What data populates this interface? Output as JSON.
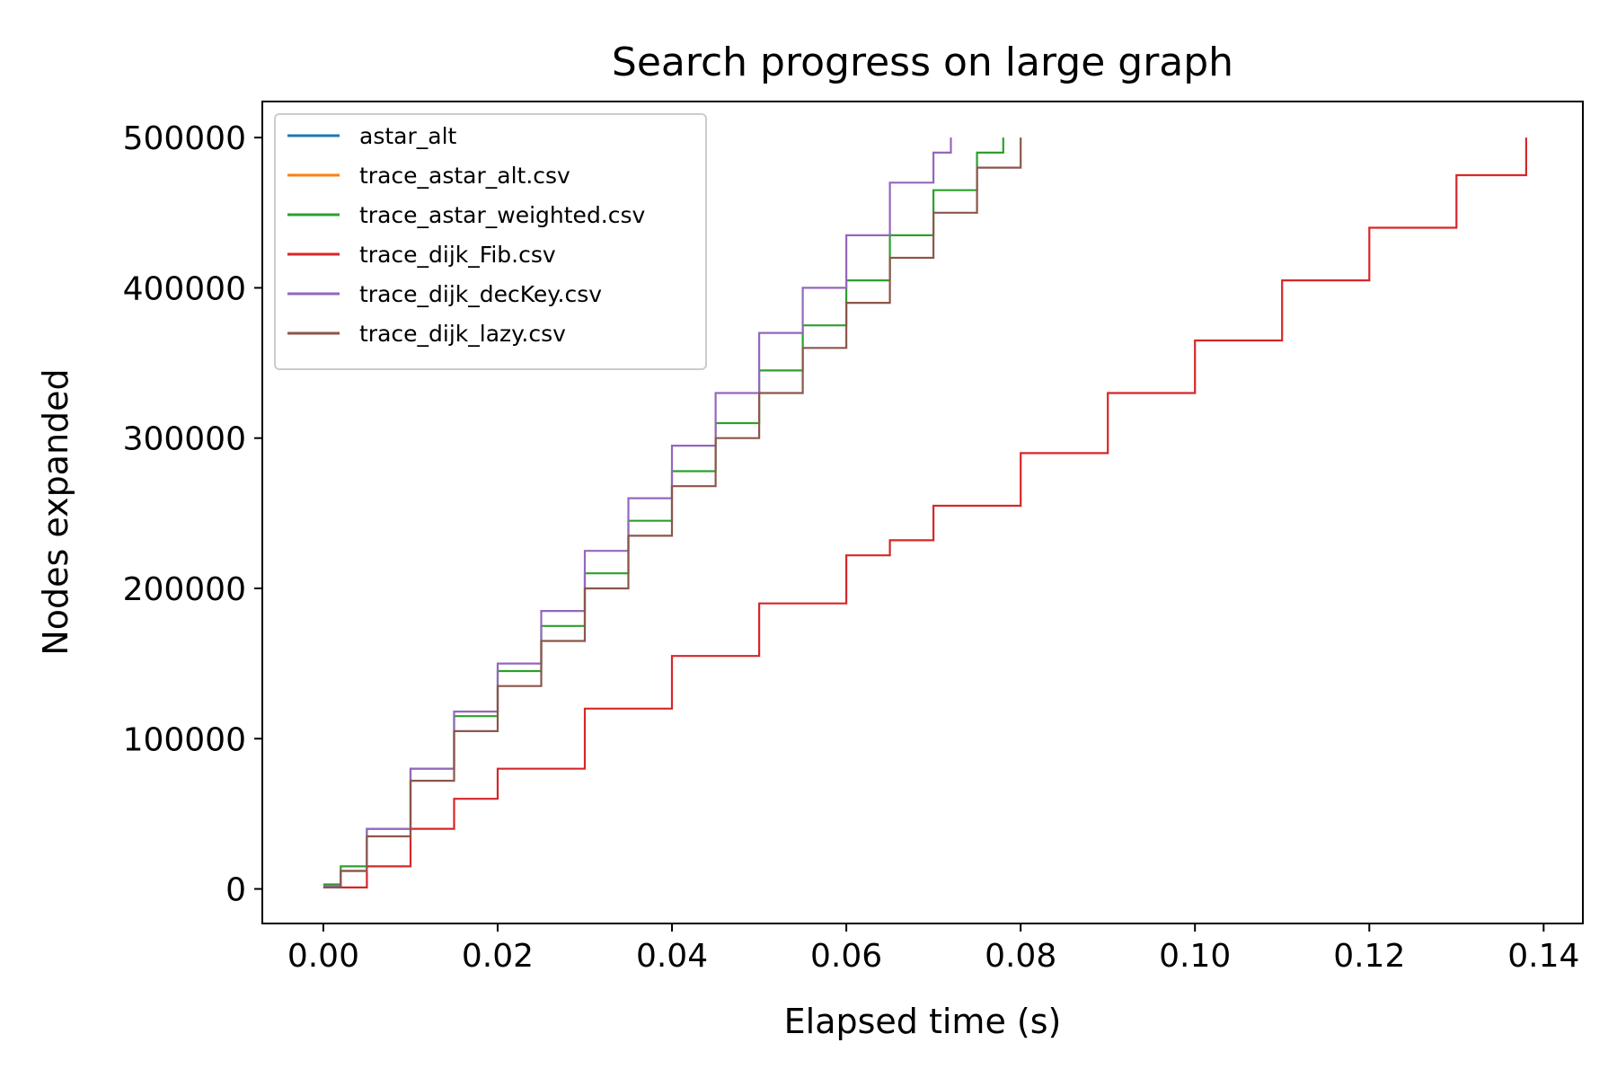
{
  "chart_data": {
    "type": "line",
    "title": "Search progress on large graph",
    "xlabel": "Elapsed time (s)",
    "ylabel": "Nodes expanded",
    "xlim": [
      -0.007,
      0.1445
    ],
    "ylim": [
      -23000,
      524000
    ],
    "x_ticks": [
      0.0,
      0.02,
      0.04,
      0.06,
      0.08,
      0.1,
      0.12,
      0.14
    ],
    "x_tick_labels": [
      "0.00",
      "0.02",
      "0.04",
      "0.06",
      "0.08",
      "0.10",
      "0.12",
      "0.14"
    ],
    "y_ticks": [
      0,
      100000,
      200000,
      300000,
      400000,
      500000
    ],
    "y_tick_labels": [
      "0",
      "100000",
      "200000",
      "300000",
      "400000",
      "500000"
    ],
    "grid": false,
    "legend_position": "top-left",
    "line_style": "steps",
    "series": [
      {
        "name": "astar_alt",
        "color": "#1f77b4",
        "x": [],
        "y": []
      },
      {
        "name": "trace_astar_alt.csv",
        "color": "#ff7f0e",
        "x": [],
        "y": []
      },
      {
        "name": "trace_astar_weighted.csv",
        "color": "#2ca02c",
        "x": [
          0.0,
          0.002,
          0.005,
          0.01,
          0.015,
          0.02,
          0.025,
          0.03,
          0.035,
          0.04,
          0.045,
          0.05,
          0.055,
          0.06,
          0.065,
          0.07,
          0.075,
          0.078
        ],
        "y": [
          3000,
          15000,
          40000,
          80000,
          115000,
          145000,
          175000,
          210000,
          245000,
          278000,
          310000,
          345000,
          375000,
          405000,
          435000,
          465000,
          490000,
          500000
        ]
      },
      {
        "name": "trace_dijk_Fib.csv",
        "color": "#d62728",
        "x": [
          0.0,
          0.005,
          0.01,
          0.015,
          0.02,
          0.03,
          0.04,
          0.05,
          0.06,
          0.065,
          0.07,
          0.08,
          0.09,
          0.1,
          0.11,
          0.12,
          0.13,
          0.138
        ],
        "y": [
          1000,
          15000,
          40000,
          60000,
          80000,
          120000,
          155000,
          190000,
          222000,
          232000,
          255000,
          290000,
          330000,
          365000,
          405000,
          440000,
          475000,
          500000
        ]
      },
      {
        "name": "trace_dijk_decKey.csv",
        "color": "#9467bd",
        "x": [
          0.0,
          0.002,
          0.005,
          0.01,
          0.015,
          0.02,
          0.025,
          0.03,
          0.035,
          0.04,
          0.045,
          0.05,
          0.055,
          0.06,
          0.065,
          0.07,
          0.072
        ],
        "y": [
          2000,
          12000,
          40000,
          80000,
          118000,
          150000,
          185000,
          225000,
          260000,
          295000,
          330000,
          370000,
          400000,
          435000,
          470000,
          490000,
          500000
        ]
      },
      {
        "name": "trace_dijk_lazy.csv",
        "color": "#8c564b",
        "x": [
          0.0,
          0.002,
          0.005,
          0.01,
          0.015,
          0.02,
          0.025,
          0.03,
          0.035,
          0.04,
          0.045,
          0.05,
          0.055,
          0.06,
          0.065,
          0.07,
          0.075,
          0.08
        ],
        "y": [
          1000,
          12000,
          35000,
          72000,
          105000,
          135000,
          165000,
          200000,
          235000,
          268000,
          300000,
          330000,
          360000,
          390000,
          420000,
          450000,
          480000,
          500000
        ]
      }
    ]
  }
}
